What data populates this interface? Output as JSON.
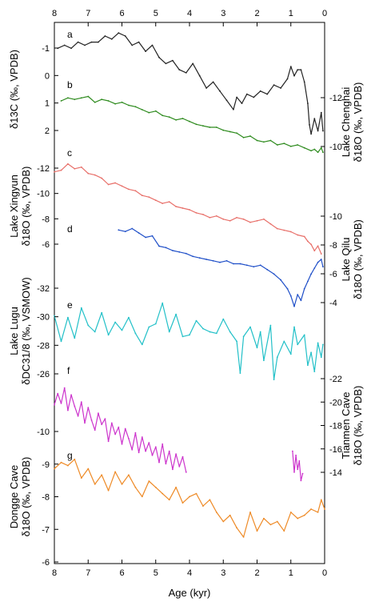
{
  "chart_data": {
    "type": "line",
    "xlabel": "Age (kyr)",
    "xlim": [
      8,
      0
    ],
    "x_ticks": [
      "8",
      "7",
      "6",
      "5",
      "4",
      "3",
      "2",
      "1",
      "0"
    ],
    "panels": [
      {
        "label": "a",
        "name": "Lake Chenghai δ13C",
        "color": "#222222",
        "y_side": "left",
        "y_label_lines": [
          "δ13C (‰, VPDB)"
        ],
        "ylim": [
          -1.2,
          2.2
        ],
        "y_inverted": true,
        "y_ticks": [
          "-1",
          "0",
          "1",
          "2"
        ],
        "x": [
          7.9,
          7.7,
          7.5,
          7.3,
          7.1,
          6.9,
          6.7,
          6.5,
          6.3,
          6.1,
          5.9,
          5.7,
          5.5,
          5.3,
          5.1,
          4.9,
          4.7,
          4.5,
          4.3,
          4.1,
          3.9,
          3.7,
          3.5,
          3.3,
          3.1,
          2.9,
          2.7,
          2.6,
          2.45,
          2.3,
          2.1,
          1.9,
          1.7,
          1.5,
          1.3,
          1.1,
          1.0,
          0.9,
          0.8,
          0.7,
          0.6,
          0.5,
          0.45,
          0.4,
          0.3,
          0.2,
          0.1,
          0.05
        ],
        "y": [
          -0.8,
          -0.9,
          -0.8,
          -1.0,
          -0.9,
          -1.0,
          -1.0,
          -1.2,
          -1.1,
          -1.3,
          -1.2,
          -0.9,
          -1.0,
          -0.7,
          -0.9,
          -0.5,
          -0.3,
          -0.4,
          -0.1,
          0.0,
          -0.3,
          0.1,
          0.5,
          0.3,
          0.6,
          0.9,
          1.2,
          0.8,
          1.0,
          0.7,
          0.8,
          0.6,
          0.7,
          0.4,
          0.5,
          0.2,
          -0.2,
          0.1,
          -0.1,
          -0.1,
          0.3,
          1.0,
          1.7,
          2.0,
          1.5,
          1.9,
          1.3,
          1.9
        ]
      },
      {
        "label": "b",
        "name": "Lake Chenghai δ18O",
        "color": "#2e8b1e",
        "y_side": "right",
        "y_label_lines": [
          "Lake Chenghai",
          "δ18O (‰, VPDB)"
        ],
        "ylim": [
          -13.2,
          -9.0
        ],
        "y_inverted": true,
        "y_ticks": [
          "-12",
          "-10"
        ],
        "x": [
          7.8,
          7.6,
          7.4,
          7.2,
          7.0,
          6.8,
          6.6,
          6.4,
          6.2,
          6.0,
          5.8,
          5.6,
          5.4,
          5.2,
          5.0,
          4.8,
          4.6,
          4.4,
          4.2,
          4.0,
          3.8,
          3.6,
          3.4,
          3.2,
          3.0,
          2.8,
          2.6,
          2.4,
          2.2,
          2.0,
          1.8,
          1.6,
          1.4,
          1.2,
          1.0,
          0.8,
          0.6,
          0.4,
          0.3,
          0.2,
          0.1,
          0.05
        ],
        "y": [
          -12.6,
          -12.8,
          -12.7,
          -12.8,
          -12.9,
          -12.5,
          -12.7,
          -12.6,
          -12.4,
          -12.5,
          -12.3,
          -12.2,
          -12.0,
          -11.8,
          -11.9,
          -11.6,
          -11.5,
          -11.3,
          -11.4,
          -11.2,
          -11.0,
          -10.9,
          -10.8,
          -10.8,
          -10.6,
          -10.5,
          -10.4,
          -10.1,
          -10.2,
          -9.9,
          -9.8,
          -9.9,
          -9.6,
          -9.7,
          -9.5,
          -9.6,
          -9.4,
          -9.2,
          -9.3,
          -9.1,
          -9.4,
          -9.1
        ]
      },
      {
        "label": "c",
        "name": "Lake Xingyun δ18O",
        "color": "#e8706a",
        "y_side": "left",
        "y_label_lines": [
          "Lake Xingyun",
          "δ18O (‰, VPDB)"
        ],
        "ylim": [
          -12.6,
          -6.0
        ],
        "y_inverted": true,
        "y_ticks": [
          "-12",
          "-10",
          "-8",
          "-6"
        ],
        "x": [
          8.0,
          7.8,
          7.6,
          7.4,
          7.2,
          7.0,
          6.8,
          6.6,
          6.4,
          6.2,
          6.0,
          5.8,
          5.6,
          5.4,
          5.2,
          5.0,
          4.8,
          4.6,
          4.4,
          4.2,
          4.0,
          3.8,
          3.6,
          3.4,
          3.2,
          3.0,
          2.8,
          2.6,
          2.4,
          2.2,
          2.0,
          1.8,
          1.6,
          1.4,
          1.2,
          1.0,
          0.8,
          0.6,
          0.5,
          0.4,
          0.3,
          0.2,
          0.1
        ],
        "y": [
          -11.6,
          -11.7,
          -12.1,
          -11.8,
          -11.9,
          -11.5,
          -11.4,
          -11.2,
          -10.8,
          -10.9,
          -10.7,
          -10.5,
          -10.4,
          -10.1,
          -10.0,
          -9.8,
          -9.6,
          -9.7,
          -9.4,
          -9.3,
          -9.2,
          -9.0,
          -8.9,
          -8.7,
          -8.8,
          -8.6,
          -8.5,
          -8.7,
          -8.6,
          -8.4,
          -8.5,
          -8.6,
          -8.3,
          -8.0,
          -7.9,
          -7.8,
          -7.6,
          -7.5,
          -7.2,
          -7.0,
          -6.6,
          -6.9,
          -6.4
        ]
      },
      {
        "label": "d",
        "name": "Lake Qilu δ18O",
        "color": "#1f4fc8",
        "y_side": "right",
        "y_label_lines": [
          "Lake Qilu",
          "δ18O (‰, VPDB)"
        ],
        "ylim": [
          -10.6,
          -3.4
        ],
        "y_inverted": true,
        "y_ticks": [
          "-10",
          "-8",
          "-6",
          "-4"
        ],
        "x": [
          6.1,
          5.9,
          5.7,
          5.5,
          5.3,
          5.1,
          4.9,
          4.7,
          4.5,
          4.3,
          4.1,
          3.9,
          3.7,
          3.5,
          3.3,
          3.1,
          2.9,
          2.7,
          2.5,
          2.3,
          2.1,
          1.9,
          1.7,
          1.5,
          1.3,
          1.1,
          1.0,
          0.9,
          0.8,
          0.7,
          0.6,
          0.5,
          0.4,
          0.3,
          0.2,
          0.1,
          0.05
        ],
        "y": [
          -9.0,
          -8.9,
          -9.1,
          -8.8,
          -8.5,
          -8.6,
          -7.9,
          -7.8,
          -7.6,
          -7.5,
          -7.4,
          -7.2,
          -7.1,
          -7.0,
          -6.9,
          -6.8,
          -6.9,
          -6.7,
          -6.7,
          -6.6,
          -6.5,
          -6.6,
          -6.3,
          -6.0,
          -5.6,
          -5.0,
          -4.5,
          -3.8,
          -4.6,
          -4.2,
          -5.0,
          -5.5,
          -6.0,
          -6.4,
          -6.8,
          -7.0,
          -6.5
        ]
      },
      {
        "label": "e",
        "name": "Lake Lugu δDC31/8",
        "color": "#22c0c8",
        "y_side": "left",
        "y_label_lines": [
          "Lake Lugu",
          "δDC31/8 (‰, VSMOW)"
        ],
        "ylim": [
          -32.6,
          -25.2
        ],
        "y_inverted": true,
        "y_ticks": [
          "-32",
          "-30",
          "-28",
          "-26"
        ],
        "x": [
          8.0,
          7.8,
          7.6,
          7.4,
          7.2,
          7.0,
          6.8,
          6.6,
          6.4,
          6.2,
          6.0,
          5.8,
          5.6,
          5.4,
          5.2,
          5.0,
          4.8,
          4.6,
          4.4,
          4.2,
          4.0,
          3.8,
          3.6,
          3.4,
          3.2,
          3.0,
          2.8,
          2.6,
          2.5,
          2.4,
          2.2,
          2.0,
          1.9,
          1.8,
          1.6,
          1.5,
          1.4,
          1.2,
          1.0,
          0.9,
          0.8,
          0.6,
          0.5,
          0.4,
          0.3,
          0.2,
          0.1,
          0.05
        ],
        "y": [
          -29.6,
          -28.0,
          -29.5,
          -28.2,
          -30.1,
          -29.0,
          -28.6,
          -29.8,
          -28.4,
          -29.2,
          -28.7,
          -29.5,
          -28.5,
          -27.8,
          -28.9,
          -29.1,
          -30.4,
          -28.6,
          -29.7,
          -28.3,
          -28.4,
          -29.3,
          -28.8,
          -28.6,
          -28.5,
          -29.4,
          -28.6,
          -28.0,
          -26.0,
          -28.3,
          -28.9,
          -27.6,
          -28.6,
          -26.8,
          -29.0,
          -25.6,
          -27.0,
          -28.0,
          -27.2,
          -28.9,
          -27.8,
          -28.4,
          -26.5,
          -27.3,
          -26.1,
          -27.9,
          -27.0,
          -27.8
        ]
      },
      {
        "label": "f",
        "name": "Tianmen Cave δ18O",
        "color": "#cc33cc",
        "y_side": "right",
        "y_label_lines": [
          "Tianmen Cave",
          "δ18O (‰, VPDB)"
        ],
        "ylim": [
          -22.4,
          -13.4
        ],
        "y_inverted": true,
        "y_ticks": [
          "-22",
          "-20",
          "-18",
          "-16",
          "-14"
        ],
        "x": [
          8.0,
          7.9,
          7.8,
          7.7,
          7.6,
          7.5,
          7.4,
          7.3,
          7.2,
          7.1,
          7.0,
          6.9,
          6.8,
          6.7,
          6.6,
          6.5,
          6.4,
          6.3,
          6.2,
          6.1,
          6.0,
          5.9,
          5.8,
          5.7,
          5.6,
          5.5,
          5.4,
          5.3,
          5.2,
          5.1,
          5.0,
          4.9,
          4.8,
          4.7,
          4.6,
          4.5,
          4.4,
          4.3,
          4.2,
          4.1
        ],
        "y": [
          -20.2,
          -21.0,
          -20.3,
          -21.4,
          -19.8,
          -20.9,
          -20.1,
          -19.4,
          -20.4,
          -18.9,
          -20.0,
          -19.1,
          -18.4,
          -19.6,
          -18.8,
          -19.2,
          -17.6,
          -18.9,
          -18.1,
          -18.6,
          -17.4,
          -18.5,
          -17.8,
          -17.0,
          -18.2,
          -16.8,
          -17.9,
          -16.9,
          -17.5,
          -16.6,
          -17.2,
          -16.1,
          -17.4,
          -16.0,
          -16.9,
          -15.6,
          -16.7,
          -15.8,
          -16.5,
          -15.4
        ]
      },
      {
        "label": "f",
        "name": "Tianmen Cave δ18O (late)",
        "color": "#cc33cc",
        "y_side": "right",
        "y_label_lines": [],
        "ylim": [
          -22.4,
          -13.4
        ],
        "y_inverted": true,
        "y_ticks": [],
        "x": [
          0.95,
          0.9,
          0.85,
          0.8,
          0.75,
          0.7,
          0.65
        ],
        "y": [
          -16.9,
          -15.4,
          -16.6,
          -15.6,
          -16.2,
          -14.8,
          -15.3
        ]
      },
      {
        "label": "g",
        "name": "Dongge Cave δ18O",
        "color": "#ee8a26",
        "y_side": "left",
        "y_label_lines": [
          "Dongge Cave",
          "δ18O (‰, VPDB)"
        ],
        "ylim": [
          -10.3,
          -6.0
        ],
        "y_inverted": true,
        "y_ticks": [
          "-10",
          "-9",
          "-8",
          "-7",
          "-6"
        ],
        "x": [
          8.0,
          7.8,
          7.6,
          7.4,
          7.2,
          7.0,
          6.8,
          6.6,
          6.4,
          6.2,
          6.0,
          5.8,
          5.6,
          5.4,
          5.2,
          5.0,
          4.8,
          4.6,
          4.4,
          4.2,
          4.0,
          3.8,
          3.6,
          3.4,
          3.2,
          3.0,
          2.8,
          2.6,
          2.4,
          2.2,
          2.0,
          1.8,
          1.6,
          1.4,
          1.2,
          1.0,
          0.8,
          0.6,
          0.4,
          0.2,
          0.1,
          0.0
        ],
        "y": [
          -9.0,
          -9.2,
          -9.1,
          -9.3,
          -8.7,
          -9.0,
          -8.5,
          -8.8,
          -8.3,
          -8.9,
          -8.5,
          -8.8,
          -8.4,
          -8.1,
          -8.6,
          -8.4,
          -8.2,
          -8.0,
          -8.4,
          -7.9,
          -8.1,
          -8.2,
          -7.8,
          -8.0,
          -7.6,
          -7.3,
          -7.5,
          -7.1,
          -6.8,
          -7.6,
          -7.0,
          -7.4,
          -7.2,
          -7.3,
          -7.0,
          -7.6,
          -7.4,
          -7.5,
          -7.7,
          -7.6,
          -8.0,
          -7.7
        ]
      }
    ]
  }
}
